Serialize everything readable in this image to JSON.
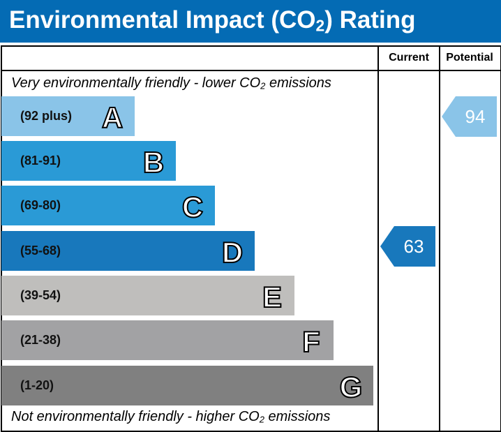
{
  "title": {
    "prefix": "Environmental Impact (CO",
    "sub": "2",
    "suffix": ") Rating",
    "background": "#046bb4"
  },
  "columns": {
    "current": "Current",
    "potential": "Potential"
  },
  "top_note": {
    "prefix": "Very environmentally friendly - lower CO",
    "sub": "2",
    "suffix": " emissions"
  },
  "bottom_note": {
    "prefix": "Not environmentally friendly - higher CO",
    "sub": "2",
    "suffix": " emissions"
  },
  "chart_data": {
    "type": "bar",
    "categories": [
      "A",
      "B",
      "C",
      "D",
      "E",
      "F",
      "G"
    ],
    "bands": [
      {
        "letter": "A",
        "range": "(92 plus)",
        "color": "#8ac4e8",
        "min": 92,
        "max": 100
      },
      {
        "letter": "B",
        "range": "(81-91)",
        "color": "#2a9ad6",
        "min": 81,
        "max": 91
      },
      {
        "letter": "C",
        "range": "(69-80)",
        "color": "#2a9ad6",
        "min": 69,
        "max": 80
      },
      {
        "letter": "D",
        "range": "(55-68)",
        "color": "#1878bc",
        "min": 55,
        "max": 68
      },
      {
        "letter": "E",
        "range": "(39-54)",
        "color": "#bfbebc",
        "min": 39,
        "max": 54
      },
      {
        "letter": "F",
        "range": "(21-38)",
        "color": "#a2a2a4",
        "min": 21,
        "max": 38
      },
      {
        "letter": "G",
        "range": "(1-20)",
        "color": "#808080",
        "min": 1,
        "max": 20
      }
    ],
    "current": {
      "value": 63,
      "band": "D",
      "color": "#1878bc"
    },
    "potential": {
      "value": 94,
      "band": "A",
      "color": "#8ac4e8"
    }
  }
}
